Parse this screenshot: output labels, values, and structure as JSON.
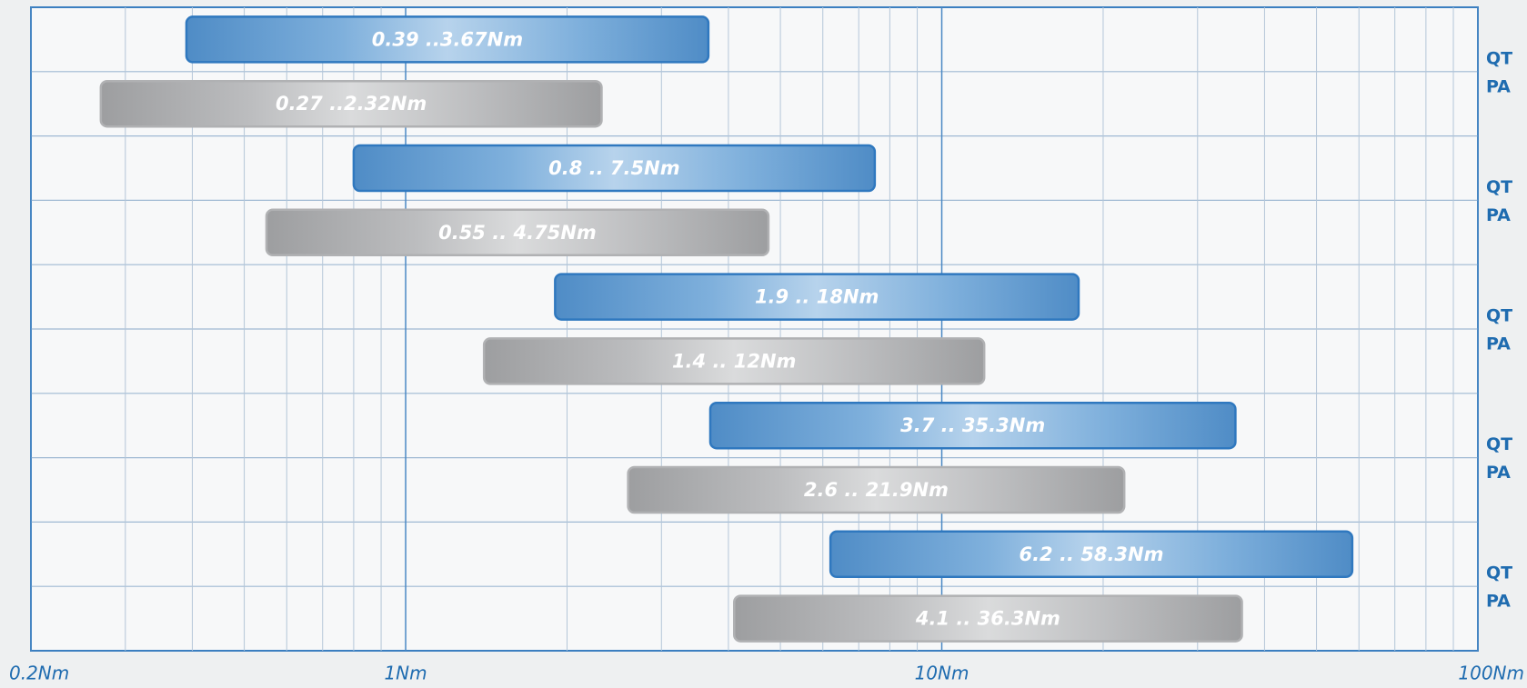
{
  "chart_data": {
    "type": "range-bar",
    "log_x": true,
    "grid": true,
    "xlim": [
      0.2,
      100
    ],
    "xticks": [
      {
        "value": 0.2,
        "label": "0.2Nm"
      },
      {
        "value": 1,
        "label": "1Nm"
      },
      {
        "value": 10,
        "label": "10Nm"
      },
      {
        "value": 100,
        "label": "100Nm"
      }
    ],
    "xminorticks": [
      0.3,
      0.4,
      0.5,
      0.6,
      0.7,
      0.8,
      0.9,
      2,
      3,
      4,
      5,
      6,
      7,
      8,
      9,
      20,
      30,
      40,
      50,
      60,
      70,
      80,
      90
    ],
    "colors": {
      "blue": "#5a95cc",
      "gray": "#a5a6a8"
    },
    "bars": [
      {
        "low": 0.39,
        "high": 3.67,
        "value_labels": "0.39 ..3.67Nm",
        "color": "blue"
      },
      {
        "low": 0.27,
        "high": 2.32,
        "value_labels": "0.27  ..2.32Nm",
        "color": "gray"
      },
      {
        "low": 0.8,
        "high": 7.5,
        "value_labels": "0.8 .. 7.5Nm",
        "color": "blue"
      },
      {
        "low": 0.55,
        "high": 4.75,
        "value_labels": "0.55  .. 4.75Nm",
        "color": "gray"
      },
      {
        "low": 1.9,
        "high": 18,
        "value_labels": "1.9  .. 18Nm",
        "color": "blue"
      },
      {
        "low": 1.4,
        "high": 12,
        "value_labels": "1.4  .. 12Nm",
        "color": "gray"
      },
      {
        "low": 3.7,
        "high": 35.3,
        "value_labels": "3.7 .. 35.3Nm",
        "color": "blue"
      },
      {
        "low": 2.6,
        "high": 21.9,
        "value_labels": "2.6 .. 21.9Nm",
        "color": "gray"
      },
      {
        "low": 6.2,
        "high": 58.3,
        "value_labels": "6.2 .. 58.3Nm",
        "color": "blue"
      },
      {
        "low": 4.1,
        "high": 36.3,
        "value_labels": "4.1 .. 36.3Nm",
        "color": "gray"
      }
    ],
    "side_labels": [
      [
        "QT",
        "PA"
      ],
      [
        "QT",
        "PA"
      ],
      [
        "QT",
        "PA"
      ],
      [
        "QT",
        "PA"
      ],
      [
        "QT",
        "PA"
      ]
    ]
  }
}
